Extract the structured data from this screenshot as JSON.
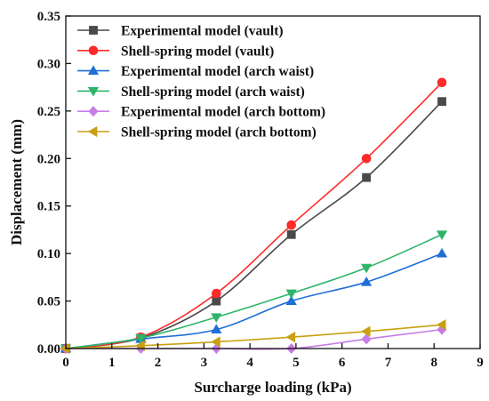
{
  "chart_data": {
    "type": "line",
    "xlabel": "Surcharge loading (kPa)",
    "ylabel": "Displacement (mm)",
    "xlim": [
      0,
      9
    ],
    "ylim": [
      0,
      0.35
    ],
    "xticks": [
      "0",
      "1",
      "2",
      "3",
      "4",
      "5",
      "6",
      "7",
      "8",
      "9"
    ],
    "yticks": [
      "0.00",
      "0.05",
      "0.10",
      "0.15",
      "0.20",
      "0.25",
      "0.30",
      "0.35"
    ],
    "grid": false,
    "legend_position": "top-left",
    "series": [
      {
        "name": "Experimental model (vault)",
        "color": "#4a4a4a",
        "marker": "square",
        "x": [
          0,
          1.63,
          3.27,
          4.9,
          6.53,
          8.17
        ],
        "y": [
          0,
          0.011,
          0.05,
          0.12,
          0.18,
          0.26
        ]
      },
      {
        "name": "Shell-spring model (vault)",
        "color": "#ff2a2a",
        "marker": "circle",
        "x": [
          0,
          1.63,
          3.27,
          4.9,
          6.53,
          8.17
        ],
        "y": [
          0,
          0.012,
          0.058,
          0.13,
          0.2,
          0.28
        ]
      },
      {
        "name": "Experimental model (arch waist)",
        "color": "#1f6fd6",
        "marker": "triangle-up",
        "x": [
          0,
          1.63,
          3.27,
          4.9,
          6.53,
          8.17
        ],
        "y": [
          0,
          0.01,
          0.02,
          0.05,
          0.07,
          0.1
        ]
      },
      {
        "name": "Shell-spring model (arch waist)",
        "color": "#2db56a",
        "marker": "triangle-down",
        "x": [
          0,
          1.63,
          3.27,
          4.9,
          6.53,
          8.17
        ],
        "y": [
          0,
          0.011,
          0.033,
          0.058,
          0.085,
          0.12
        ]
      },
      {
        "name": "Experimental model (arch bottom)",
        "color": "#c77de6",
        "marker": "diamond",
        "x": [
          0,
          1.63,
          3.27,
          4.9,
          6.53,
          8.17
        ],
        "y": [
          0,
          0,
          0,
          0,
          0.01,
          0.02
        ]
      },
      {
        "name": "Shell-spring model (arch bottom)",
        "color": "#c8a010",
        "marker": "triangle-left",
        "x": [
          0,
          1.63,
          3.27,
          4.9,
          6.53,
          8.17
        ],
        "y": [
          0,
          0.003,
          0.007,
          0.012,
          0.018,
          0.025
        ]
      }
    ]
  }
}
